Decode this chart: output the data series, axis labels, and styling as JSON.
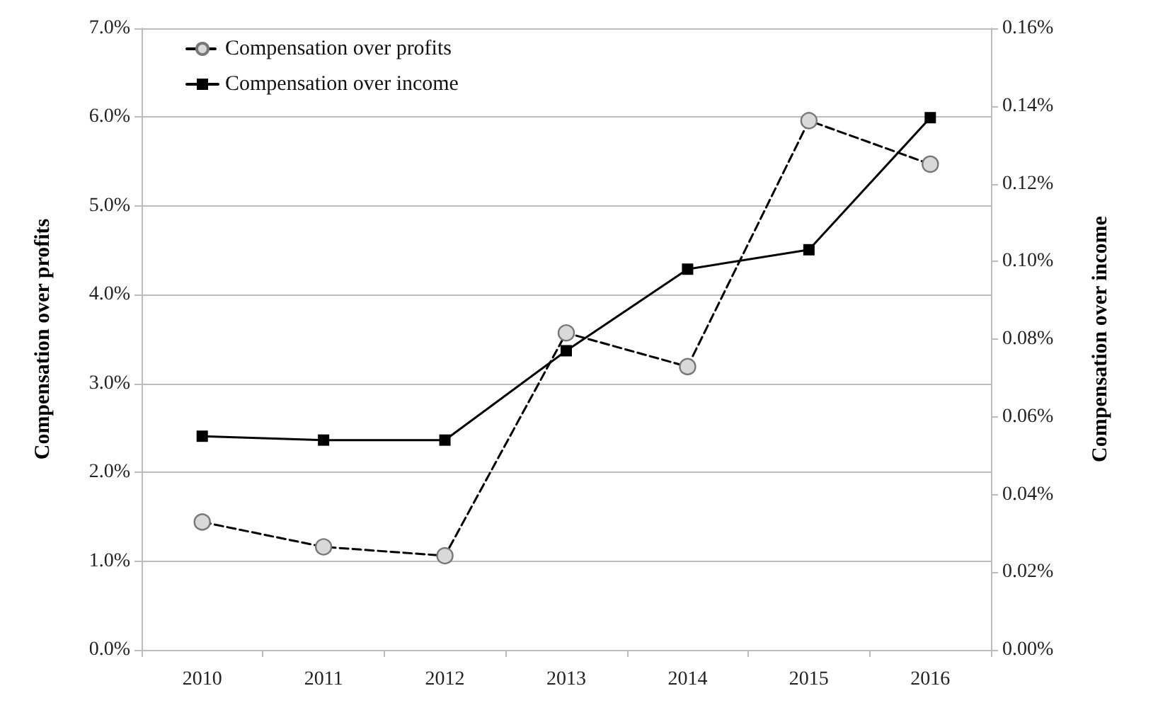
{
  "chart_data": {
    "type": "line",
    "ylabel": "Compensation over profits",
    "y2label": "Compensation over income",
    "categories": [
      "2010",
      "2011",
      "2012",
      "2013",
      "2014",
      "2015",
      "2016"
    ],
    "series": [
      {
        "name": "Compensation over profits",
        "color": "#000000",
        "marker": "circle",
        "line_style": "dashed",
        "values": [
          1.44,
          1.16,
          1.06,
          3.57,
          3.19,
          5.96,
          5.47
        ]
      },
      {
        "name": "Compensation over income",
        "color": "#000000",
        "marker": "square",
        "line_style": "solid",
        "axis": "y2",
        "values": [
          0.055,
          0.054,
          0.054,
          0.077,
          0.098,
          0.103,
          0.137
        ]
      }
    ],
    "ylim": [
      0,
      7
    ],
    "yticks": [
      {
        "value": 0,
        "label": "0.0%"
      },
      {
        "value": 1,
        "label": "1.0%"
      },
      {
        "value": 2,
        "label": "2.0%"
      },
      {
        "value": 3,
        "label": "3.0%"
      },
      {
        "value": 4,
        "label": "4.0%"
      },
      {
        "value": 5,
        "label": "5.0%"
      },
      {
        "value": 6,
        "label": "6.0%"
      },
      {
        "value": 7,
        "label": "7.0%"
      }
    ],
    "y2lim": [
      0,
      0.16
    ],
    "y2ticks": [
      {
        "value": 0,
        "label": "0.00%"
      },
      {
        "value": 0.02,
        "label": "0.02%"
      },
      {
        "value": 0.04,
        "label": "0.04%"
      },
      {
        "value": 0.06,
        "label": "0.06%"
      },
      {
        "value": 0.08,
        "label": "0.08%"
      },
      {
        "value": 0.1,
        "label": "0.10%"
      },
      {
        "value": 0.12,
        "label": "0.12%"
      },
      {
        "value": 0.14,
        "label": "0.14%"
      },
      {
        "value": 0.16,
        "label": "0.16%"
      }
    ],
    "grid": "y",
    "legend": "top left"
  }
}
